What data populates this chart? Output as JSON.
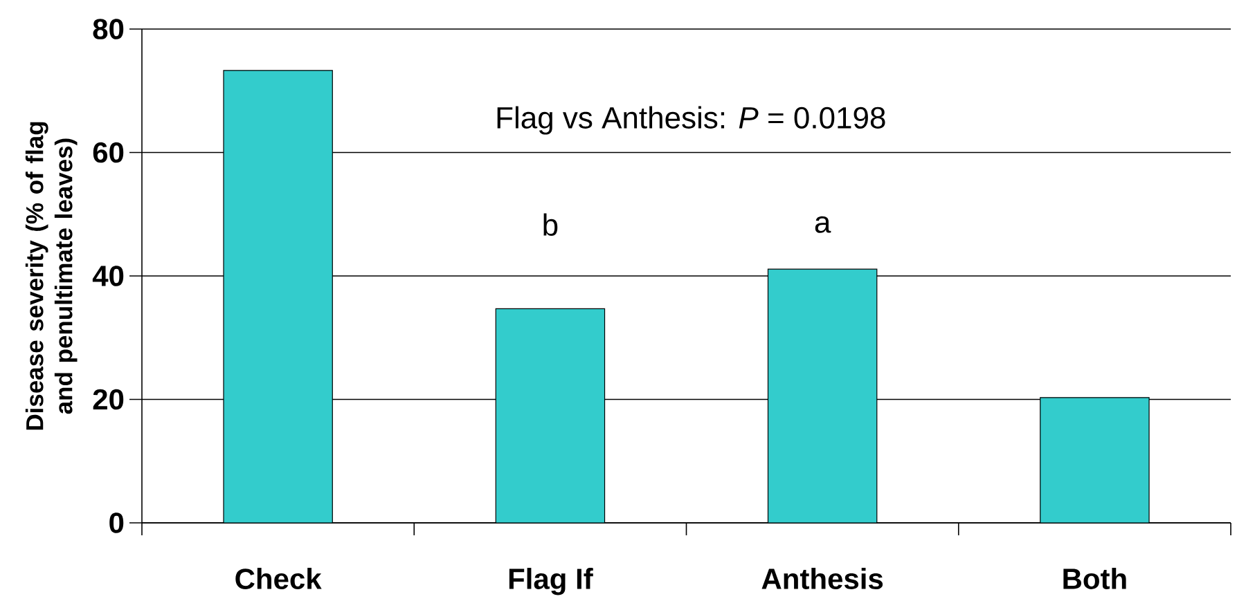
{
  "chart_data": {
    "type": "bar",
    "ylabel": "Disease severity (% of flag and penultimate leaves)",
    "categories": [
      "Check",
      "Flag If",
      "Anthesis",
      "Both"
    ],
    "values": [
      73.3,
      34.7,
      41.1,
      20.3
    ],
    "color": "#33cccc",
    "ylim": [
      0,
      80
    ],
    "yticks": [
      0,
      20,
      40,
      60,
      80
    ],
    "grid": "y",
    "annotations": [
      "Flag vs Anthesis: *P* = 0.0198",
      "b",
      "a"
    ]
  }
}
